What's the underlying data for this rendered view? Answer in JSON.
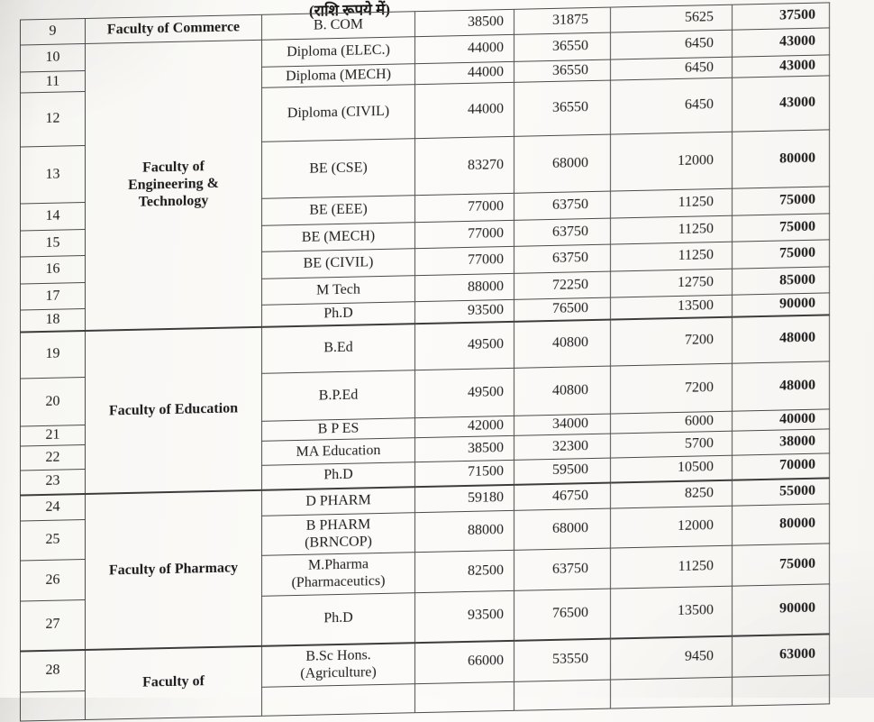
{
  "title": "(राशि रूपये में)",
  "table": {
    "sections": [
      {
        "faculty": "Faculty of Commerce",
        "rows": [
          {
            "id": "9",
            "sno": "9",
            "course": "B. COM",
            "values": [
              "38500",
              "31875",
              "5625",
              "37500"
            ]
          }
        ]
      },
      {
        "faculty": "Faculty of\nEngineering &\nTechnology",
        "rows": [
          {
            "id": "10",
            "sno": "10",
            "course": "Diploma (ELEC.)",
            "values": [
              "44000",
              "36550",
              "6450",
              "43000"
            ]
          },
          {
            "id": "11",
            "sno": "11",
            "course": "Diploma (MECH)",
            "values": [
              "44000",
              "36550",
              "6450",
              "43000"
            ]
          },
          {
            "id": "12",
            "sno": "12",
            "course": "Diploma (CIVIL)",
            "values": [
              "44000",
              "36550",
              "6450",
              "43000"
            ]
          },
          {
            "id": "13",
            "sno": "13",
            "course": "BE (CSE)",
            "values": [
              "83270",
              "68000",
              "12000",
              "80000"
            ]
          },
          {
            "id": "14",
            "sno": "14",
            "course": "BE (EEE)",
            "values": [
              "77000",
              "63750",
              "11250",
              "75000"
            ]
          },
          {
            "id": "15",
            "sno": "15",
            "course": "BE (MECH)",
            "values": [
              "77000",
              "63750",
              "11250",
              "75000"
            ]
          },
          {
            "id": "16",
            "sno": "16",
            "course": "BE (CIVIL)",
            "values": [
              "77000",
              "63750",
              "11250",
              "75000"
            ]
          },
          {
            "id": "17",
            "sno": "17",
            "course": "M Tech",
            "values": [
              "88000",
              "72250",
              "12750",
              "85000"
            ]
          },
          {
            "id": "18",
            "sno": "18",
            "course": "Ph.D",
            "values": [
              "93500",
              "76500",
              "13500",
              "90000"
            ]
          }
        ]
      },
      {
        "faculty": "Faculty of Education",
        "rows": [
          {
            "id": "19",
            "sno": "19",
            "course": "B.Ed",
            "values": [
              "49500",
              "40800",
              "7200",
              "48000"
            ]
          },
          {
            "id": "20",
            "sno": "20",
            "course": "B.P.Ed",
            "values": [
              "49500",
              "40800",
              "7200",
              "48000"
            ]
          },
          {
            "id": "21",
            "sno": "21",
            "course": "B P ES",
            "values": [
              "42000",
              "34000",
              "6000",
              "40000"
            ]
          },
          {
            "id": "22",
            "sno": "22",
            "course": "MA Education",
            "values": [
              "38500",
              "32300",
              "5700",
              "38000"
            ]
          },
          {
            "id": "23",
            "sno": "23",
            "course": "Ph.D",
            "values": [
              "71500",
              "59500",
              "10500",
              "70000"
            ]
          }
        ]
      },
      {
        "faculty": "Faculty of Pharmacy",
        "rows": [
          {
            "id": "24",
            "sno": "24",
            "course": "D PHARM",
            "values": [
              "59180",
              "46750",
              "8250",
              "55000"
            ]
          },
          {
            "id": "25",
            "sno": "25",
            "course": "B PHARM\n(BRNCOP)",
            "values": [
              "88000",
              "68000",
              "12000",
              "80000"
            ]
          },
          {
            "id": "26",
            "sno": "26",
            "course": "M.Pharma\n(Pharmaceutics)",
            "values": [
              "82500",
              "63750",
              "11250",
              "75000"
            ]
          },
          {
            "id": "27",
            "sno": "27",
            "course": "Ph.D",
            "values": [
              "93500",
              "76500",
              "13500",
              "90000"
            ]
          }
        ]
      },
      {
        "faculty": "Faculty of",
        "rows": [
          {
            "id": "28",
            "sno": "28",
            "course": "B.Sc Hons.\n(Agriculture)",
            "values": [
              "66000",
              "53550",
              "9450",
              "63000"
            ]
          },
          {
            "id": "29",
            "sno": "",
            "course": "",
            "values": [
              "",
              "",
              "",
              ""
            ]
          }
        ]
      }
    ]
  }
}
